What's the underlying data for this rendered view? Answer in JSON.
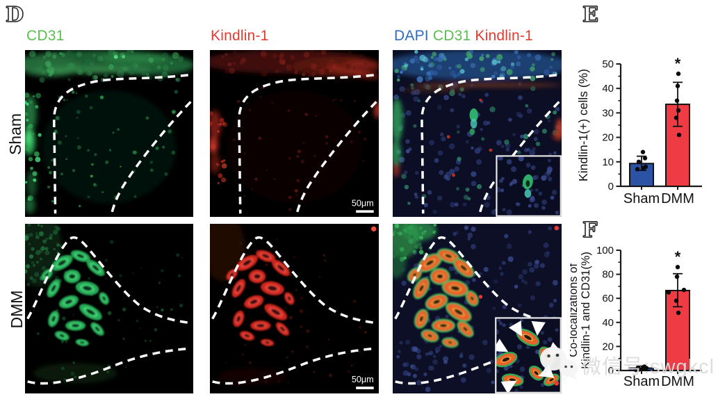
{
  "figure": {
    "panel_d_label": "D",
    "panel_e_label": "E",
    "panel_f_label": "F",
    "column_headers": {
      "col1": "CD31",
      "col2": "Kindlin-1",
      "col3_dapi": "DAPI",
      "col3_cd31": "CD31",
      "col3_kindlin1": "Kindlin-1"
    },
    "row_labels": {
      "row1": "Sham",
      "row2": "DMM"
    },
    "scale_bar_label": "50μm",
    "colors": {
      "cd31_green": "#5abf4f",
      "kindlin1_red": "#e8392f",
      "dapi_blue": "#2d6cc4",
      "sham_bar_blue": "#2b52a5",
      "dmm_bar_red": "#ee3b44"
    }
  },
  "watermark": {
    "text": "微信号:swgkcl",
    "icon": "wechat-logo"
  },
  "chart_data": [
    {
      "id": "E",
      "type": "bar",
      "ylabel": "Kindlin-1(+) cells (%)",
      "categories": [
        "Sham",
        "DMM"
      ],
      "values": [
        9.3,
        33.5
      ],
      "bar_colors": [
        "#2b52a5",
        "#ee3b44"
      ],
      "error_bars": [
        [
          6.5,
          12.3
        ],
        [
          24.5,
          42.5
        ]
      ],
      "points": [
        [
          7,
          7.5,
          8,
          10,
          11.5,
          14
        ],
        [
          21,
          28,
          31,
          35,
          41,
          46
        ]
      ],
      "ylim": [
        0,
        50
      ],
      "yticks": [
        0,
        10,
        20,
        30,
        40,
        50
      ],
      "minor_tick_step": 5,
      "significance": {
        "category": "DMM",
        "label": "*"
      },
      "grid": false,
      "legend": "none"
    },
    {
      "id": "F",
      "type": "bar",
      "ylabel_lines": [
        "Co-localizations of",
        "Kindlin-1 and CD31(%)"
      ],
      "categories": [
        "Sham",
        "DMM"
      ],
      "values": [
        2,
        66.5
      ],
      "bar_colors": [
        "#2b52a5",
        "#ee3b44"
      ],
      "error_bars": [
        [
          0.3,
          3.8
        ],
        [
          53,
          80.5
        ]
      ],
      "points": [
        [
          0.5,
          1,
          1.5,
          2,
          2.5,
          3.2
        ],
        [
          48,
          58,
          65,
          67,
          78,
          86
        ]
      ],
      "ylim": [
        0,
        100
      ],
      "yticks": [
        0,
        20,
        40,
        60,
        80,
        100
      ],
      "minor_tick_step": 10,
      "significance": {
        "category": "DMM",
        "label": "*"
      },
      "grid": false,
      "legend": "none"
    }
  ]
}
